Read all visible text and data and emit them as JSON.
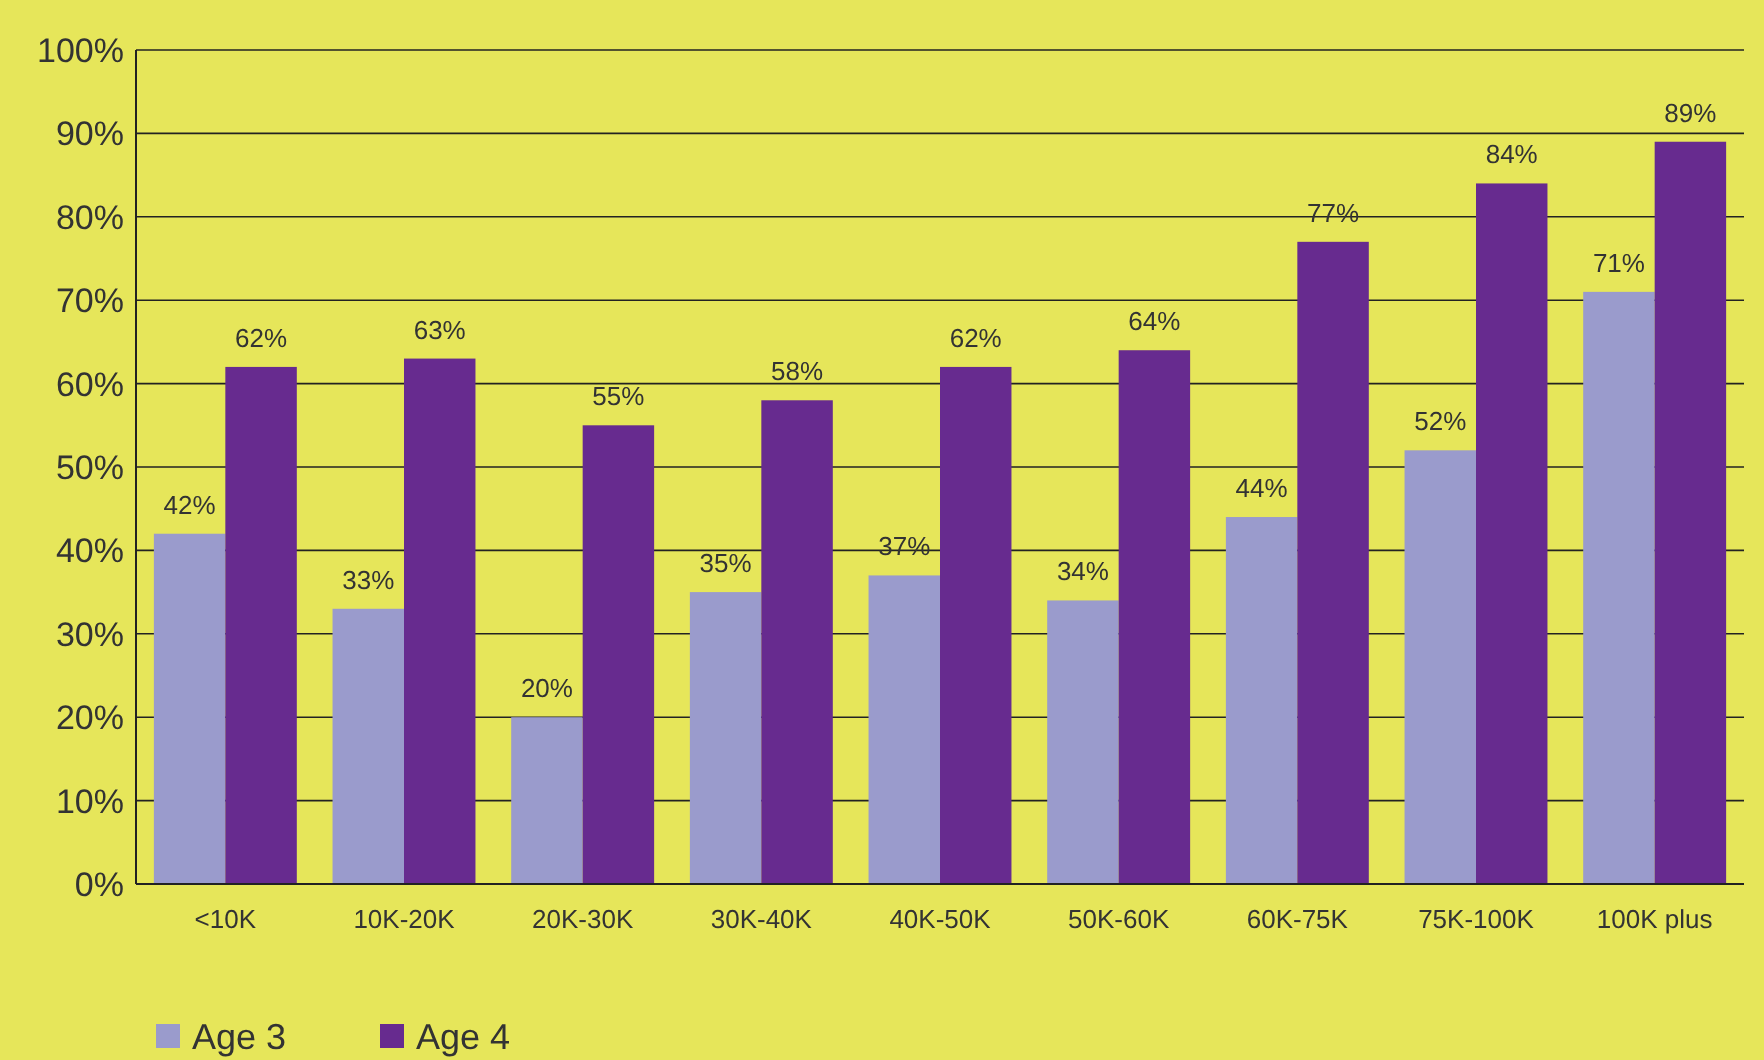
{
  "chart_data": {
    "type": "bar",
    "categories": [
      "<10K",
      "10K-20K",
      "20K-30K",
      "30K-40K",
      "40K-50K",
      "50K-60K",
      "60K-75K",
      "75K-100K",
      "100K plus"
    ],
    "series": [
      {
        "name": "Age 3",
        "color": "#9a9bcc",
        "values": [
          42,
          33,
          20,
          35,
          37,
          34,
          44,
          52,
          71
        ],
        "value_labels": [
          "42%",
          "33%",
          "20%",
          "35%",
          "37%",
          "34%",
          "44%",
          "52%",
          "71%"
        ]
      },
      {
        "name": "Age 4",
        "color": "#672b8f",
        "values": [
          62,
          63,
          55,
          58,
          62,
          64,
          77,
          84,
          89
        ],
        "value_labels": [
          "62%",
          "63%",
          "55%",
          "58%",
          "62%",
          "64%",
          "77%",
          "84%",
          "89%"
        ]
      }
    ],
    "ylim": [
      0,
      100
    ],
    "yticks": [
      {
        "value": 0,
        "label": "0%"
      },
      {
        "value": 10,
        "label": "10%"
      },
      {
        "value": 20,
        "label": "20%"
      },
      {
        "value": 30,
        "label": "30%"
      },
      {
        "value": 40,
        "label": "40%"
      },
      {
        "value": 50,
        "label": "50%"
      },
      {
        "value": 60,
        "label": "60%"
      },
      {
        "value": 70,
        "label": "70%"
      },
      {
        "value": 80,
        "label": "80%"
      },
      {
        "value": 90,
        "label": "90%"
      },
      {
        "value": 100,
        "label": "100%"
      }
    ],
    "grid": "y",
    "legend": "bottom left"
  }
}
